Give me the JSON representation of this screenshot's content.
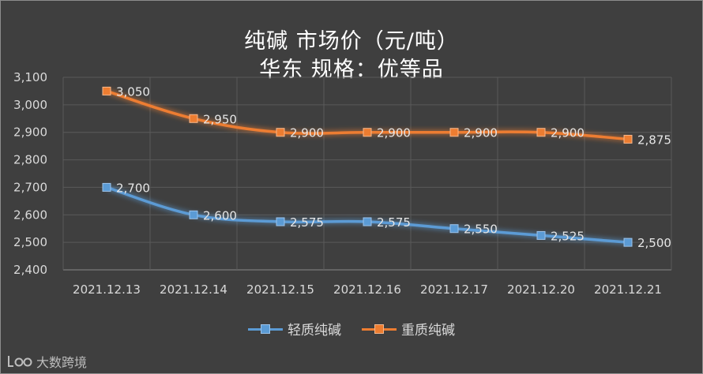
{
  "chart_data": {
    "type": "line",
    "title_line1": "纯碱  市场价（元/吨）",
    "title_line2": "华东      规格：优等品",
    "categories": [
      "2021.12.13",
      "2021.12.14",
      "2021.12.15",
      "2021.12.16",
      "2021.12.17",
      "2021.12.20",
      "2021.12.21"
    ],
    "y_ticks": [
      "2,400",
      "2,500",
      "2,600",
      "2,700",
      "2,800",
      "2,900",
      "3,000",
      "3,100"
    ],
    "ylim": [
      2400,
      3100
    ],
    "grid": true,
    "legend_position": "bottom",
    "series": [
      {
        "name": "轻质纯碱",
        "color": "#5b9bd5",
        "values": [
          2700,
          2600,
          2575,
          2575,
          2550,
          2525,
          2500
        ],
        "labels": [
          "2,700",
          "2,600",
          "2,575",
          "2,575",
          "2,550",
          "2,525",
          "2,500"
        ]
      },
      {
        "name": "重质纯碱",
        "color": "#ed7d31",
        "values": [
          3050,
          2950,
          2900,
          2900,
          2900,
          2900,
          2875
        ],
        "labels": [
          "3,050",
          "2,950",
          "2,900",
          "2,900",
          "2,900",
          "2,900",
          "2,875"
        ]
      }
    ]
  },
  "watermark": {
    "logo_icon": "leo-logo-icon",
    "text": "大数跨境"
  }
}
